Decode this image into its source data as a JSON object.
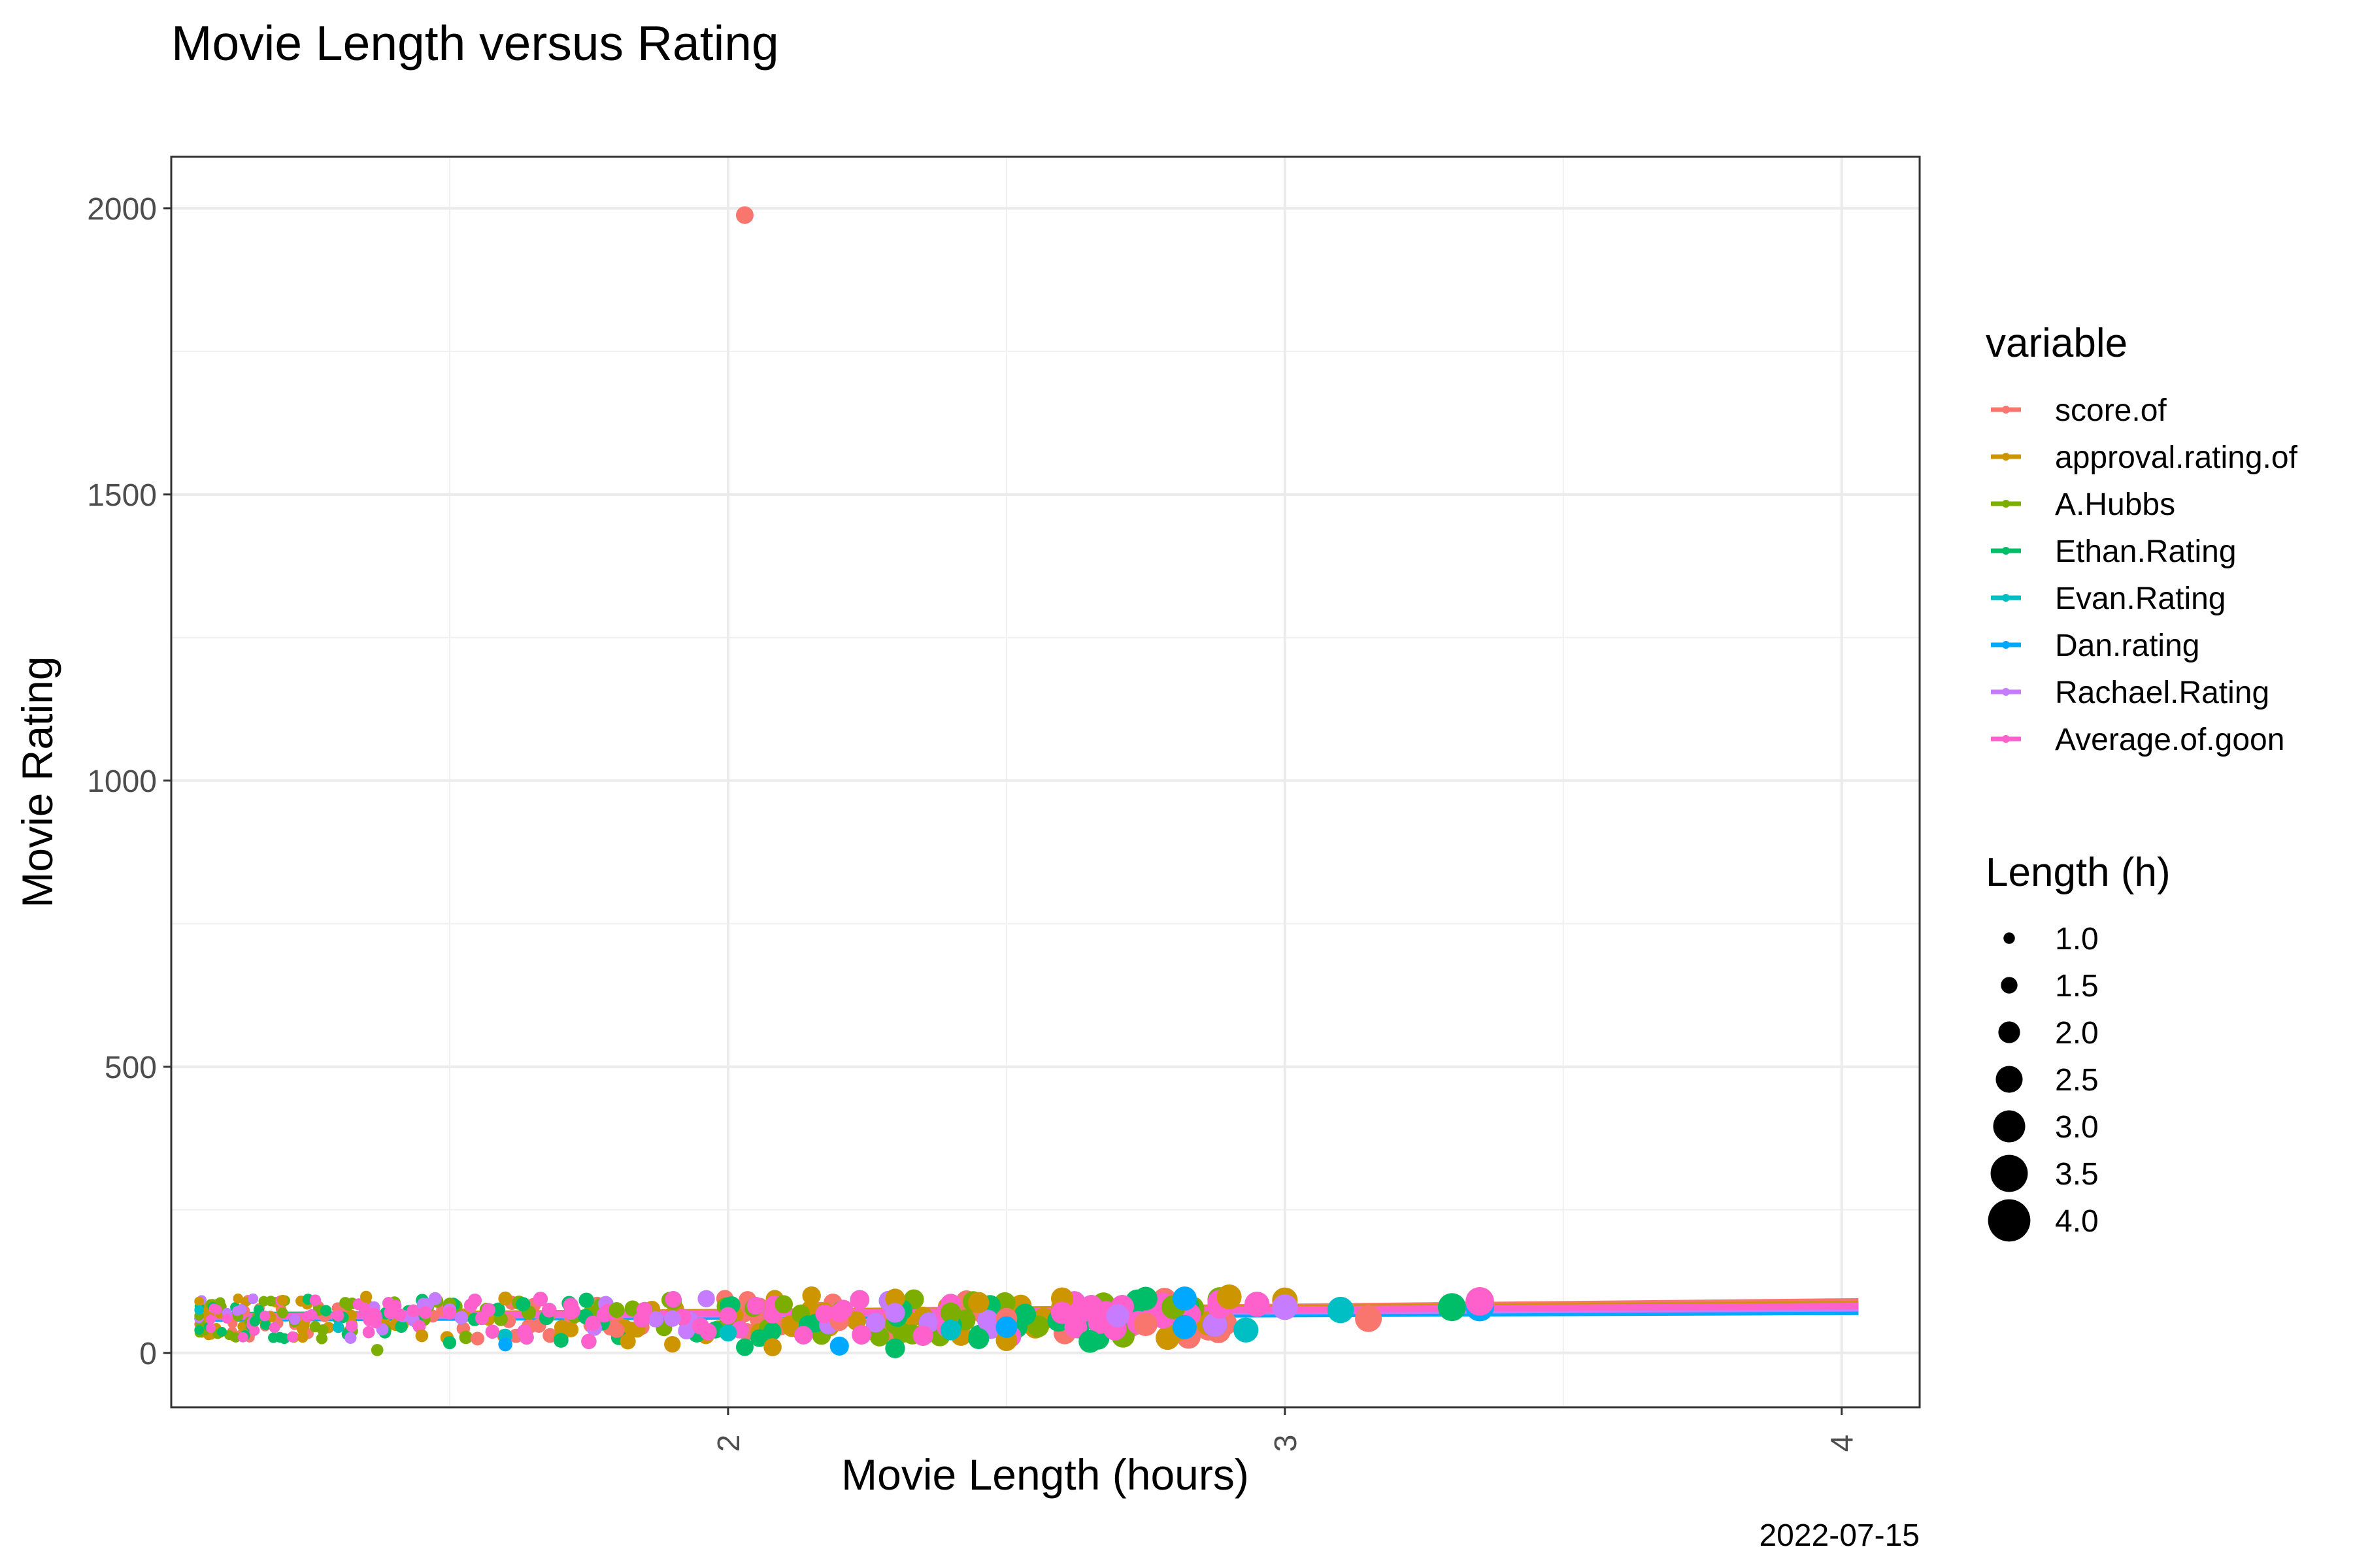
{
  "chart_data": {
    "type": "scatter",
    "title": "Movie Length versus Rating",
    "xlabel": "Movie Length (hours)",
    "ylabel": "Movie Rating",
    "caption": "2022-07-15",
    "xlim": [
      1.0,
      4.14
    ],
    "ylim": [
      -95,
      2090
    ],
    "x_ticks": [
      2,
      3,
      4
    ],
    "x_tick_labels": [
      "2",
      "3",
      "4"
    ],
    "x_minor_ticks": [
      1.5,
      2.5,
      3.5
    ],
    "y_ticks": [
      0,
      500,
      1000,
      1500,
      2000
    ],
    "y_tick_labels": [
      "0",
      "500",
      "1000",
      "1500",
      "2000"
    ],
    "y_minor_ticks": [
      250,
      750,
      1250,
      1750
    ],
    "grid": true,
    "legend_placement": "right",
    "color_legend": {
      "title": "variable",
      "entries": [
        {
          "name": "score.of",
          "color": "#F8766D"
        },
        {
          "name": "approval.rating.of",
          "color": "#CD9600"
        },
        {
          "name": "A.Hubbs",
          "color": "#7CAE00"
        },
        {
          "name": "Ethan.Rating",
          "color": "#00BE67"
        },
        {
          "name": "Evan.Rating",
          "color": "#00BFC4"
        },
        {
          "name": "Dan.rating",
          "color": "#00A9FF"
        },
        {
          "name": "Rachael.Rating",
          "color": "#C77CFF"
        },
        {
          "name": "Average.of.goon",
          "color": "#FF61CC"
        }
      ]
    },
    "size_legend": {
      "title": "Length (h)",
      "values": [
        1.0,
        1.5,
        2.0,
        2.5,
        3.0,
        3.5,
        4.0
      ],
      "labels": [
        "1.0",
        "1.5",
        "2.0",
        "2.5",
        "3.0",
        "3.5",
        "4.0"
      ]
    },
    "series": [
      {
        "name": "score.of",
        "trend": {
          "x": [
            1.05,
            4.03
          ],
          "y": [
            62,
            90
          ]
        },
        "points": [
          [
            2.03,
            1988
          ],
          [
            1.55,
            25
          ],
          [
            1.8,
            40
          ],
          [
            2.2,
            55
          ],
          [
            2.5,
            60
          ],
          [
            2.75,
            50
          ],
          [
            3.15,
            60
          ],
          [
            3.35,
            85
          ]
        ]
      },
      {
        "name": "approval.rating.of",
        "trend": {
          "x": [
            1.05,
            4.03
          ],
          "y": [
            65,
            85
          ]
        },
        "points": [
          [
            1.05,
            90
          ],
          [
            1.12,
            95
          ],
          [
            1.2,
            92
          ],
          [
            1.35,
            98
          ],
          [
            1.45,
            30
          ],
          [
            1.6,
            95
          ],
          [
            1.7,
            28
          ],
          [
            1.82,
            20
          ],
          [
            1.9,
            15
          ],
          [
            2.08,
            10
          ],
          [
            2.15,
            100
          ],
          [
            2.3,
            95
          ],
          [
            2.45,
            88
          ],
          [
            2.5,
            22
          ],
          [
            2.6,
            95
          ],
          [
            2.9,
            98
          ],
          [
            3.0,
            92
          ]
        ]
      },
      {
        "name": "A.Hubbs",
        "trend": {
          "x": [
            1.05,
            4.03
          ],
          "y": [
            64,
            80
          ]
        },
        "points": [
          [
            1.05,
            65
          ],
          [
            1.2,
            70
          ],
          [
            1.37,
            5
          ],
          [
            1.5,
            85
          ],
          [
            1.8,
            75
          ],
          [
            2.1,
            85
          ],
          [
            2.4,
            70
          ],
          [
            2.8,
            80
          ],
          [
            3.35,
            90
          ]
        ]
      },
      {
        "name": "Ethan.Rating",
        "trend": {
          "x": [
            1.05,
            4.03
          ],
          "y": [
            66,
            72
          ]
        },
        "points": [
          [
            1.05,
            40
          ],
          [
            1.15,
            55
          ],
          [
            1.3,
            60
          ],
          [
            1.5,
            18
          ],
          [
            1.7,
            22
          ],
          [
            2.03,
            10
          ],
          [
            2.3,
            8
          ],
          [
            2.45,
            25
          ],
          [
            2.65,
            20
          ],
          [
            2.75,
            95
          ],
          [
            3.3,
            80
          ]
        ]
      },
      {
        "name": "Evan.Rating",
        "trend": {
          "x": [
            1.05,
            4.03
          ],
          "y": [
            62,
            76
          ]
        },
        "points": [
          [
            1.05,
            75
          ],
          [
            1.3,
            45
          ],
          [
            1.6,
            30
          ],
          [
            2.0,
            35
          ],
          [
            2.4,
            40
          ],
          [
            2.93,
            40
          ],
          [
            3.1,
            75
          ]
        ]
      },
      {
        "name": "Dan.rating",
        "trend": {
          "x": [
            1.05,
            4.03
          ],
          "y": [
            60,
            72
          ]
        },
        "points": [
          [
            1.1,
            70
          ],
          [
            1.6,
            15
          ],
          [
            1.75,
            20
          ],
          [
            2.2,
            12
          ],
          [
            2.5,
            45
          ],
          [
            2.82,
            95
          ],
          [
            2.82,
            45
          ],
          [
            3.35,
            80
          ]
        ]
      },
      {
        "name": "Rachael.Rating",
        "trend": {
          "x": [
            1.05,
            4.03
          ],
          "y": [
            63,
            78
          ]
        },
        "points": [
          [
            1.1,
            70
          ],
          [
            1.5,
            75
          ],
          [
            1.9,
            60
          ],
          [
            2.3,
            70
          ],
          [
            2.7,
            65
          ],
          [
            3.0,
            80
          ]
        ]
      },
      {
        "name": "Average.of.goon",
        "trend": {
          "x": [
            1.05,
            4.03
          ],
          "y": [
            64,
            82
          ]
        },
        "points": [
          [
            1.1,
            60
          ],
          [
            1.3,
            65
          ],
          [
            1.5,
            70
          ],
          [
            1.75,
            20
          ],
          [
            1.85,
            75
          ],
          [
            2.0,
            65
          ],
          [
            2.2,
            70
          ],
          [
            2.35,
            30
          ],
          [
            2.6,
            70
          ],
          [
            2.95,
            85
          ],
          [
            3.35,
            90
          ]
        ]
      }
    ]
  }
}
